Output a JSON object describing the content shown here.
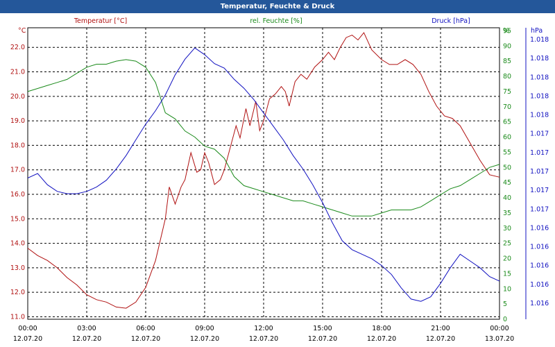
{
  "window": {
    "title": "Temperatur, Feuchte & Druck"
  },
  "chart_data": {
    "type": "line",
    "title": "Temperatur, Feuchte & Druck",
    "x": [
      "00:00",
      "03:00",
      "06:00",
      "09:00",
      "12:00",
      "15:00",
      "18:00",
      "21:00",
      "00:00"
    ],
    "x_dates": [
      "12.07.20",
      "12.07.20",
      "12.07.20",
      "12.07.20",
      "12.07.20",
      "12.07.20",
      "12.07.20",
      "12.07.20",
      "13.07.20"
    ],
    "grid": true,
    "axes": {
      "left": {
        "label": "Temperatur [°C]",
        "unit": "°C",
        "color": "#b01010",
        "ylim": [
          10.9,
          22.8
        ],
        "ticks": [
          "22.0",
          "21.0",
          "20.0",
          "19.0",
          "18.0",
          "17.0",
          "16.0",
          "15.0",
          "14.0",
          "13.0",
          "12.0",
          "11.0"
        ]
      },
      "right1": {
        "label": "rel. Feuchte [%]",
        "unit": "%",
        "color": "#1a8a1a",
        "ylim": [
          0,
          96
        ],
        "ticks": [
          "95",
          "90",
          "85",
          "80",
          "75",
          "70",
          "65",
          "60",
          "55",
          "50",
          "45",
          "40",
          "35",
          "30",
          "25",
          "20",
          "15",
          "10",
          "5",
          "0"
        ]
      },
      "right2": {
        "label": "Druck [hPa]",
        "unit": "hPa",
        "color": "#1010c0",
        "ticks": [
          "1.018",
          "1.018",
          "1.018",
          "1.018",
          "1.018",
          "1.017",
          "1.017",
          "1.017",
          "1.017",
          "1.017",
          "1.016",
          "1.016",
          "1.016",
          "1.016",
          "1.016"
        ]
      }
    },
    "series": [
      {
        "name": "Temperatur [°C]",
        "color": "#b01010",
        "axis": "left",
        "points": [
          [
            0,
            13.8
          ],
          [
            0.5,
            13.5
          ],
          [
            1,
            13.3
          ],
          [
            1.5,
            13.0
          ],
          [
            2,
            12.6
          ],
          [
            2.5,
            12.3
          ],
          [
            3,
            11.9
          ],
          [
            3.5,
            11.7
          ],
          [
            4,
            11.6
          ],
          [
            4.5,
            11.4
          ],
          [
            5,
            11.35
          ],
          [
            5.5,
            11.6
          ],
          [
            6,
            12.2
          ],
          [
            6.5,
            13.3
          ],
          [
            7,
            15.0
          ],
          [
            7.2,
            16.3
          ],
          [
            7.5,
            15.6
          ],
          [
            7.8,
            16.3
          ],
          [
            8,
            16.6
          ],
          [
            8.3,
            17.7
          ],
          [
            8.6,
            16.9
          ],
          [
            8.8,
            17.0
          ],
          [
            9,
            17.7
          ],
          [
            9.2,
            17.3
          ],
          [
            9.5,
            16.4
          ],
          [
            9.8,
            16.6
          ],
          [
            10,
            17.0
          ],
          [
            10.3,
            17.9
          ],
          [
            10.6,
            18.8
          ],
          [
            10.8,
            18.3
          ],
          [
            11.1,
            19.5
          ],
          [
            11.3,
            18.8
          ],
          [
            11.6,
            19.8
          ],
          [
            11.8,
            18.6
          ],
          [
            12,
            19.0
          ],
          [
            12.3,
            19.9
          ],
          [
            12.6,
            20.1
          ],
          [
            12.9,
            20.4
          ],
          [
            13.1,
            20.2
          ],
          [
            13.3,
            19.6
          ],
          [
            13.6,
            20.6
          ],
          [
            13.9,
            20.9
          ],
          [
            14.2,
            20.7
          ],
          [
            14.6,
            21.2
          ],
          [
            15,
            21.5
          ],
          [
            15.3,
            21.8
          ],
          [
            15.6,
            21.5
          ],
          [
            15.9,
            22.0
          ],
          [
            16.2,
            22.4
          ],
          [
            16.5,
            22.5
          ],
          [
            16.8,
            22.3
          ],
          [
            17.1,
            22.6
          ],
          [
            17.5,
            21.9
          ],
          [
            18,
            21.5
          ],
          [
            18.4,
            21.3
          ],
          [
            18.8,
            21.3
          ],
          [
            19.2,
            21.5
          ],
          [
            19.6,
            21.3
          ],
          [
            20,
            20.9
          ],
          [
            20.4,
            20.2
          ],
          [
            20.8,
            19.6
          ],
          [
            21.2,
            19.2
          ],
          [
            21.6,
            19.1
          ],
          [
            22,
            18.8
          ],
          [
            22.5,
            18.1
          ],
          [
            23,
            17.4
          ],
          [
            23.5,
            16.8
          ],
          [
            24,
            16.7
          ]
        ]
      },
      {
        "name": "rel. Feuchte [%]",
        "color": "#1a8a1a",
        "axis": "right1",
        "points": [
          [
            0,
            75
          ],
          [
            0.5,
            76
          ],
          [
            1,
            77
          ],
          [
            1.5,
            78
          ],
          [
            2,
            79
          ],
          [
            2.5,
            81
          ],
          [
            3,
            83
          ],
          [
            3.5,
            84
          ],
          [
            4,
            84
          ],
          [
            4.5,
            85
          ],
          [
            5,
            85.5
          ],
          [
            5.5,
            85
          ],
          [
            6,
            83
          ],
          [
            6.5,
            78
          ],
          [
            7,
            68
          ],
          [
            7.5,
            66
          ],
          [
            8,
            62
          ],
          [
            8.5,
            60
          ],
          [
            9,
            57
          ],
          [
            9.5,
            56
          ],
          [
            10,
            53
          ],
          [
            10.5,
            47
          ],
          [
            11,
            44
          ],
          [
            11.5,
            43
          ],
          [
            12,
            42
          ],
          [
            12.5,
            41
          ],
          [
            13,
            40
          ],
          [
            13.5,
            39
          ],
          [
            14,
            39
          ],
          [
            14.5,
            38
          ],
          [
            15,
            37
          ],
          [
            15.5,
            36
          ],
          [
            16,
            35
          ],
          [
            16.5,
            34
          ],
          [
            17,
            34
          ],
          [
            17.5,
            34
          ],
          [
            18,
            35
          ],
          [
            18.5,
            36
          ],
          [
            19,
            36
          ],
          [
            19.5,
            36
          ],
          [
            20,
            37
          ],
          [
            20.5,
            39
          ],
          [
            21,
            41
          ],
          [
            21.5,
            43
          ],
          [
            22,
            44
          ],
          [
            22.5,
            46
          ],
          [
            23,
            48
          ],
          [
            23.5,
            50
          ],
          [
            24,
            51
          ]
        ]
      },
      {
        "name": "Druck [hPa]",
        "color": "#1010c0",
        "axis": "right2",
        "points": [
          [
            0,
            63
          ],
          [
            0.5,
            65
          ],
          [
            1,
            60
          ],
          [
            1.5,
            57
          ],
          [
            2,
            56
          ],
          [
            2.5,
            56
          ],
          [
            3,
            57
          ],
          [
            3.5,
            59
          ],
          [
            4,
            62
          ],
          [
            4.5,
            67
          ],
          [
            5,
            73
          ],
          [
            5.5,
            80
          ],
          [
            6,
            87
          ],
          [
            6.5,
            93
          ],
          [
            7,
            100
          ],
          [
            7.5,
            109
          ],
          [
            8,
            116
          ],
          [
            8.5,
            121
          ],
          [
            9,
            118
          ],
          [
            9.5,
            114
          ],
          [
            10,
            112
          ],
          [
            10.5,
            107
          ],
          [
            11,
            103
          ],
          [
            11.5,
            98
          ],
          [
            12,
            92
          ],
          [
            12.5,
            86
          ],
          [
            13,
            80
          ],
          [
            13.5,
            73
          ],
          [
            14,
            67
          ],
          [
            14.5,
            60
          ],
          [
            15,
            52
          ],
          [
            15.5,
            43
          ],
          [
            16,
            35
          ],
          [
            16.5,
            31
          ],
          [
            17,
            29
          ],
          [
            17.5,
            27
          ],
          [
            18,
            24
          ],
          [
            18.5,
            20
          ],
          [
            19,
            14
          ],
          [
            19.5,
            9
          ],
          [
            20,
            8
          ],
          [
            20.5,
            10
          ],
          [
            21,
            16
          ],
          [
            21.5,
            23
          ],
          [
            22,
            29
          ],
          [
            22.5,
            26
          ],
          [
            23,
            23
          ],
          [
            23.5,
            19
          ],
          [
            24,
            17
          ]
        ]
      }
    ]
  }
}
